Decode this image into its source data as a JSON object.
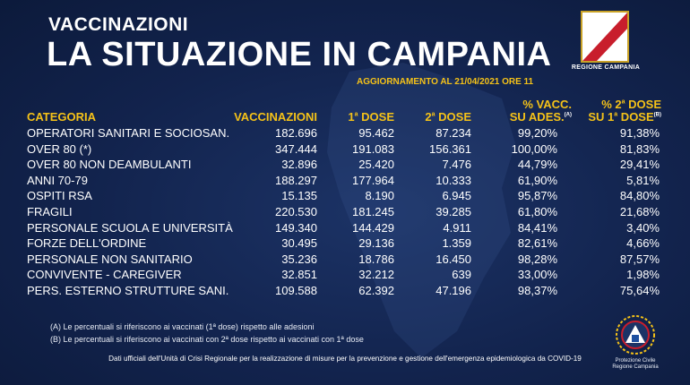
{
  "header": {
    "subtitle": "VACCINAZIONI",
    "title": "LA SITUAZIONE IN CAMPANIA",
    "update": "AGGIORNAMENTO AL 21/04/2021 ORE 11"
  },
  "logo": {
    "text": "REGIONE CAMPANIA"
  },
  "columns": {
    "categoria": "CATEGORIA",
    "vaccinazioni": "VACCINAZIONI",
    "dose1": "1",
    "dose1_sup": "a",
    "dose1_suffix": " DOSE",
    "dose2": "2",
    "dose2_sup": "a",
    "dose2_suffix": " DOSE",
    "pct_vacc_line1": "% VACC.",
    "pct_vacc_line2": "SU ADES.",
    "pct_vacc_note": "(A)",
    "pct_2dose_line1": "% 2",
    "pct_2dose_line1_sup": "a",
    "pct_2dose_line1_suffix": " DOSE",
    "pct_2dose_line2": "SU 1",
    "pct_2dose_line2_sup": "a",
    "pct_2dose_line2_suffix": " DOSE",
    "pct_2dose_note": "(B)"
  },
  "rows": [
    {
      "categoria": "OPERATORI SANITARI E SOCIOSAN.",
      "vaccinazioni": "182.696",
      "dose1": "95.462",
      "dose2": "87.234",
      "pct_vacc": "99,20%",
      "pct_2dose": "91,38%"
    },
    {
      "categoria": "OVER 80 (*)",
      "vaccinazioni": "347.444",
      "dose1": "191.083",
      "dose2": "156.361",
      "pct_vacc": "100,00%",
      "pct_2dose": "81,83%"
    },
    {
      "categoria": "OVER 80 NON DEAMBULANTI",
      "vaccinazioni": "32.896",
      "dose1": "25.420",
      "dose2": "7.476",
      "pct_vacc": "44,79%",
      "pct_2dose": "29,41%"
    },
    {
      "categoria": "ANNI 70-79",
      "vaccinazioni": "188.297",
      "dose1": "177.964",
      "dose2": "10.333",
      "pct_vacc": "61,90%",
      "pct_2dose": "5,81%"
    },
    {
      "categoria": "OSPITI RSA",
      "vaccinazioni": "15.135",
      "dose1": "8.190",
      "dose2": "6.945",
      "pct_vacc": "95,87%",
      "pct_2dose": "84,80%"
    },
    {
      "categoria": "FRAGILI",
      "vaccinazioni": "220.530",
      "dose1": "181.245",
      "dose2": "39.285",
      "pct_vacc": "61,80%",
      "pct_2dose": "21,68%"
    },
    {
      "categoria": "PERSONALE SCUOLA E UNIVERSITÀ",
      "vaccinazioni": "149.340",
      "dose1": "144.429",
      "dose2": "4.911",
      "pct_vacc": "84,41%",
      "pct_2dose": "3,40%"
    },
    {
      "categoria": "FORZE DELL'ORDINE",
      "vaccinazioni": "30.495",
      "dose1": "29.136",
      "dose2": "1.359",
      "pct_vacc": "82,61%",
      "pct_2dose": "4,66%"
    },
    {
      "categoria": "PERSONALE NON SANITARIO",
      "vaccinazioni": "35.236",
      "dose1": "18.786",
      "dose2": "16.450",
      "pct_vacc": "98,28%",
      "pct_2dose": "87,57%"
    },
    {
      "categoria": "CONVIVENTE - CAREGIVER",
      "vaccinazioni": "32.851",
      "dose1": "32.212",
      "dose2": "639",
      "pct_vacc": "33,00%",
      "pct_2dose": "1,98%"
    },
    {
      "categoria": "PERS. ESTERNO STRUTTURE SANI.",
      "vaccinazioni": "109.588",
      "dose1": "62.392",
      "dose2": "47.196",
      "pct_vacc": "98,37%",
      "pct_2dose": "75,64%"
    }
  ],
  "notes": {
    "a": "(A) Le percentuali si riferiscono ai vaccinati (1ª dose) rispetto alle adesioni",
    "b": "(B) Le percentuali si riferiscono ai vaccinati con 2ª dose rispetto ai vaccinati con 1ª dose"
  },
  "footer": "Dati ufficiali dell'Unità di Crisi Regionale per la realizzazione di misure per la prevenzione e gestione dell'emergenza epidemiologica da COVID-19",
  "protezione_civile": {
    "line1": "Protezione Civile",
    "line2": "Regione Campania"
  },
  "colors": {
    "background": "#12234d",
    "accent": "#f5c218",
    "text": "#ffffff"
  }
}
